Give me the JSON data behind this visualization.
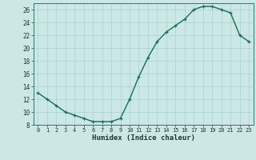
{
  "x": [
    0,
    1,
    2,
    3,
    4,
    5,
    6,
    7,
    8,
    9,
    10,
    11,
    12,
    13,
    14,
    15,
    16,
    17,
    18,
    19,
    20,
    21,
    22,
    23
  ],
  "y": [
    13,
    12,
    11,
    10,
    9.5,
    9,
    8.5,
    8.5,
    8.5,
    9,
    12,
    15.5,
    18.5,
    21,
    22.5,
    23.5,
    24.5,
    26,
    26.5,
    26.5,
    26,
    25.5,
    22,
    21
  ],
  "xlabel": "Humidex (Indice chaleur)",
  "xlim": [
    -0.5,
    23.5
  ],
  "ylim": [
    8,
    27
  ],
  "yticks": [
    8,
    10,
    12,
    14,
    16,
    18,
    20,
    22,
    24,
    26
  ],
  "xticks": [
    0,
    1,
    2,
    3,
    4,
    5,
    6,
    7,
    8,
    9,
    10,
    11,
    12,
    13,
    14,
    15,
    16,
    17,
    18,
    19,
    20,
    21,
    22,
    23
  ],
  "line_color": "#1a6b5a",
  "bg_color": "#cce8e4",
  "grid_color": "#a8d4cf"
}
